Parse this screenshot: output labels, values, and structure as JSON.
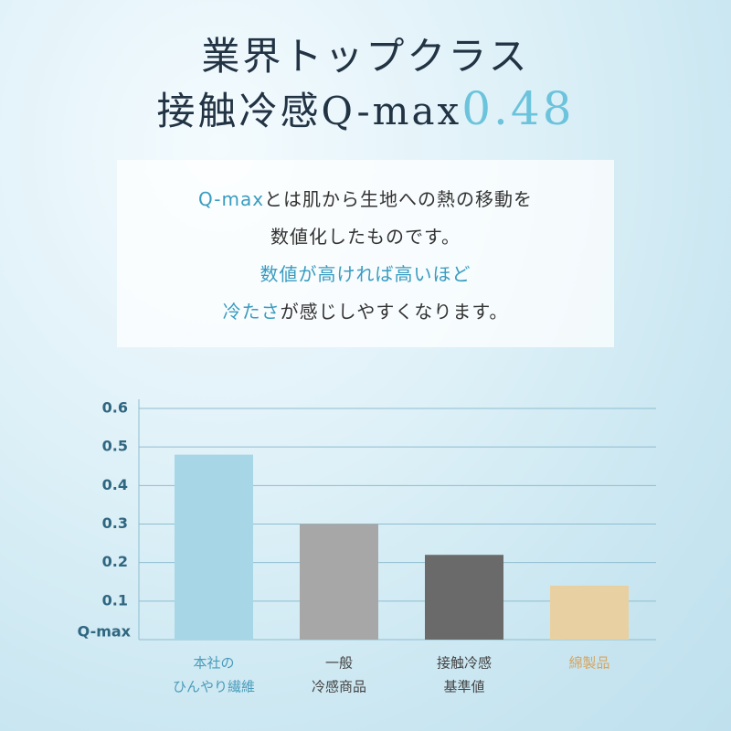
{
  "header": {
    "line1": "業界トップクラス",
    "line2": "接触冷感Q-max",
    "highlight": "0.48"
  },
  "description": {
    "lines": [
      [
        {
          "text": "Q-max",
          "highlight": true
        },
        {
          "text": "とは肌から生地への熱の移動を",
          "highlight": false
        }
      ],
      [
        {
          "text": "数値化したものです。",
          "highlight": false
        }
      ],
      [
        {
          "text": "数値が高ければ高いほど",
          "highlight": true
        }
      ],
      [
        {
          "text": "冷たさ",
          "highlight": true
        },
        {
          "text": "が感じしやすくなります。",
          "highlight": false
        }
      ]
    ]
  },
  "chart_data": {
    "type": "bar",
    "ylabel": "Q-max",
    "categories": [
      [
        "本社の",
        "ひんやり繊維"
      ],
      [
        "一般",
        "冷感商品"
      ],
      [
        "接触冷感",
        "基準値"
      ],
      [
        "綿製品"
      ]
    ],
    "values": [
      0.48,
      0.3,
      0.22,
      0.14
    ],
    "colors": [
      "#a7d7e6",
      "#a7a7a7",
      "#6a6a6a",
      "#e9d0a2"
    ],
    "label_colors": [
      "#4a9cba",
      "#444444",
      "#444444",
      "#d6a560"
    ],
    "ylim": [
      0,
      0.6
    ],
    "yticks": [
      0.1,
      0.2,
      0.3,
      0.4,
      0.5,
      0.6
    ],
    "grid": true
  }
}
